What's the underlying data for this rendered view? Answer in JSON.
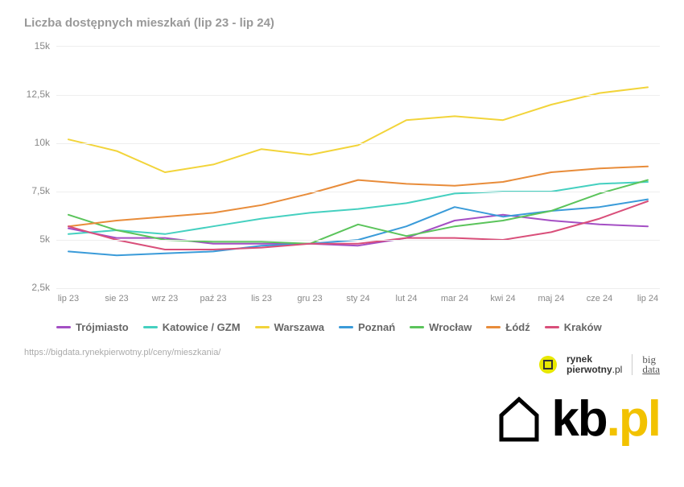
{
  "title": "Liczba dostępnych mieszkań (lip 23 - lip 24)",
  "source_url": "https://bigdata.rynekpierwotny.pl/ceny/mieszkania/",
  "chart": {
    "type": "line",
    "x_labels": [
      "lip 23",
      "sie 23",
      "wrz 23",
      "paź 23",
      "lis 23",
      "gru 23",
      "sty 24",
      "lut 24",
      "mar 24",
      "kwi 24",
      "maj 24",
      "cze 24",
      "lip 24"
    ],
    "y_ticks": [
      2500,
      5000,
      7500,
      10000,
      12500,
      15000
    ],
    "y_tick_labels": [
      "2,5k",
      "5k",
      "7,5k",
      "10k",
      "12,5k",
      "15k"
    ],
    "ylim": [
      2500,
      15000
    ],
    "grid_color": "#eeeeee",
    "background_color": "#ffffff",
    "tick_fontsize": 12,
    "tick_color": "#888888",
    "line_width": 2,
    "series": [
      {
        "name": "Trójmiasto",
        "color": "#a44fc4",
        "data": [
          5600,
          5100,
          5100,
          4800,
          4800,
          4800,
          4700,
          5100,
          6000,
          6300,
          6000,
          5800,
          5700
        ]
      },
      {
        "name": "Katowice / GZM",
        "color": "#45d0c0",
        "data": [
          5300,
          5500,
          5300,
          5700,
          6100,
          6400,
          6600,
          6900,
          7400,
          7500,
          7500,
          7900,
          8000
        ]
      },
      {
        "name": "Warszawa",
        "color": "#f2d43a",
        "data": [
          10200,
          9600,
          8500,
          8900,
          9700,
          9400,
          9900,
          11200,
          11400,
          11200,
          12000,
          12600,
          12900
        ]
      },
      {
        "name": "Poznań",
        "color": "#3a9bd9",
        "data": [
          4400,
          4200,
          4300,
          4400,
          4700,
          4800,
          5000,
          5700,
          6700,
          6200,
          6500,
          6700,
          7100
        ]
      },
      {
        "name": "Wrocław",
        "color": "#5bc45b",
        "data": [
          6300,
          5500,
          5000,
          4900,
          4900,
          4800,
          5800,
          5200,
          5700,
          6000,
          6500,
          7400,
          8100
        ]
      },
      {
        "name": "Łódź",
        "color": "#e88c3a",
        "data": [
          5700,
          6000,
          6200,
          6400,
          6800,
          7400,
          8100,
          7900,
          7800,
          8000,
          8500,
          8700,
          8800
        ]
      },
      {
        "name": "Kraków",
        "color": "#d94f7a",
        "data": [
          5700,
          5000,
          4500,
          4500,
          4600,
          4800,
          4800,
          5100,
          5100,
          5000,
          5400,
          6100,
          7000
        ]
      }
    ]
  },
  "brand": {
    "rp_line1": "rynek",
    "rp_line2": "pierwotny",
    "rp_suffix": ".pl",
    "bigdata_l1": "big",
    "bigdata_l2": "data",
    "kb_k": "kb",
    "kb_pl": ".pl"
  }
}
